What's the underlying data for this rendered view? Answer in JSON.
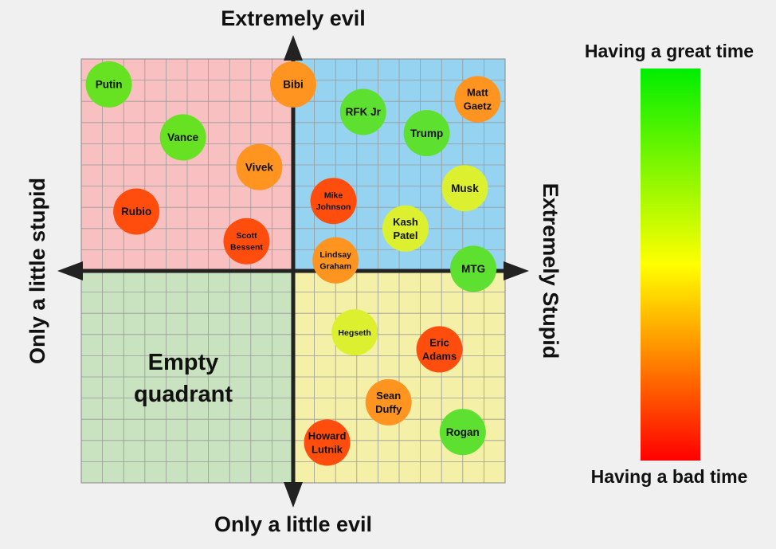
{
  "chart_data": {
    "type": "scatter",
    "title": "",
    "axes": {
      "top": "Extremely evil",
      "bottom": "Only a little evil",
      "left": "Only a little stupid",
      "right": "Extremely Stupid"
    },
    "xlim": [
      -1,
      1
    ],
    "ylim": [
      -1,
      1
    ],
    "grid": true,
    "quadrants": [
      {
        "name": "top-left",
        "color": "#f8c0c0",
        "label": ""
      },
      {
        "name": "top-right",
        "color": "#96d3f0",
        "label": ""
      },
      {
        "name": "bottom-left",
        "color": "#c9e2bf",
        "label": "Empty quadrant"
      },
      {
        "name": "bottom-right",
        "color": "#f4f0a8",
        "label": ""
      }
    ],
    "colorbar": {
      "top_label": "Having a great time",
      "bottom_label": "Having a bad time",
      "colors": [
        "#00ee00",
        "#7ff000",
        "#ffff00",
        "#ff8800",
        "#ff0000"
      ]
    },
    "points": [
      {
        "label": "Putin",
        "x": -0.87,
        "y": 0.88,
        "color": "#66e222"
      },
      {
        "label": "Bibi",
        "x": 0.0,
        "y": 0.88,
        "color": "#ff9420"
      },
      {
        "label": "Matt Gaetz",
        "x": 0.87,
        "y": 0.81,
        "color": "#ff9420"
      },
      {
        "label": "RFK Jr",
        "x": 0.33,
        "y": 0.75,
        "color": "#5ee030"
      },
      {
        "label": "Trump",
        "x": 0.63,
        "y": 0.65,
        "color": "#5ee030"
      },
      {
        "label": "Vance",
        "x": -0.52,
        "y": 0.63,
        "color": "#66e222"
      },
      {
        "label": "Vivek",
        "x": -0.16,
        "y": 0.49,
        "color": "#ff9420"
      },
      {
        "label": "Musk",
        "x": 0.81,
        "y": 0.39,
        "color": "#dcf030"
      },
      {
        "label": "Mike Johnson",
        "x": 0.19,
        "y": 0.33,
        "color": "#ff4d0e"
      },
      {
        "label": "Rubio",
        "x": -0.74,
        "y": 0.28,
        "color": "#ff4d0e"
      },
      {
        "label": "Kash Patel",
        "x": 0.53,
        "y": 0.2,
        "color": "#dcf030"
      },
      {
        "label": "Scott Bessent",
        "x": -0.22,
        "y": 0.14,
        "color": "#ff4d0e"
      },
      {
        "label": "Lindsay Graham",
        "x": 0.2,
        "y": 0.05,
        "color": "#ff9420"
      },
      {
        "label": "MTG",
        "x": 0.85,
        "y": 0.01,
        "color": "#5ee030"
      },
      {
        "label": "Hegseth",
        "x": 0.29,
        "y": -0.29,
        "color": "#dcf030"
      },
      {
        "label": "Eric Adams",
        "x": 0.69,
        "y": -0.37,
        "color": "#ff4d0e"
      },
      {
        "label": "Sean Duffy",
        "x": 0.45,
        "y": -0.62,
        "color": "#ff9420"
      },
      {
        "label": "Rogan",
        "x": 0.8,
        "y": -0.76,
        "color": "#5ee030"
      },
      {
        "label": "Howard Lutnik",
        "x": 0.16,
        "y": -0.81,
        "color": "#ff4d0e"
      }
    ]
  }
}
